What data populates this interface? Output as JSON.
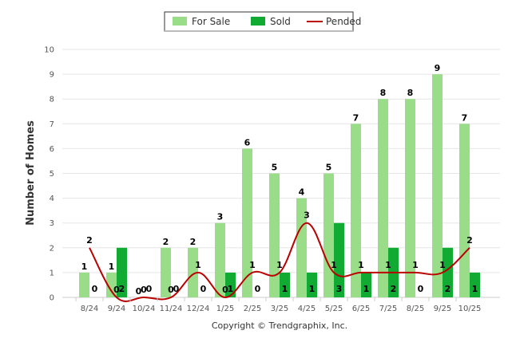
{
  "chart_data": {
    "type": "bar",
    "ylabel": "Number of Homes",
    "ylim": [
      0,
      10
    ],
    "yticks": [
      0,
      1,
      2,
      3,
      4,
      5,
      6,
      7,
      8,
      9,
      10
    ],
    "categories": [
      "8/24",
      "9/24",
      "10/24",
      "11/24",
      "12/24",
      "1/25",
      "2/25",
      "3/25",
      "4/25",
      "5/25",
      "6/25",
      "7/25",
      "8/25",
      "9/25",
      "10/25"
    ],
    "series": [
      {
        "name": "For Sale",
        "kind": "bar",
        "color": "#99dd88",
        "values": [
          1,
          1,
          0,
          2,
          2,
          3,
          6,
          5,
          4,
          5,
          7,
          8,
          8,
          9,
          7
        ]
      },
      {
        "name": "Sold",
        "kind": "bar",
        "color": "#11aa33",
        "values": [
          0,
          2,
          0,
          0,
          0,
          1,
          0,
          1,
          1,
          3,
          1,
          2,
          0,
          2,
          1
        ]
      },
      {
        "name": "Pended",
        "kind": "line",
        "color": "#bb0000",
        "values": [
          2,
          0,
          0,
          0,
          1,
          0,
          1,
          1,
          3,
          1,
          1,
          1,
          1,
          1,
          2
        ]
      }
    ],
    "legend": {
      "position": "top-center"
    }
  },
  "footer": {
    "copyright": "Copyright © Trendgraphix, Inc."
  }
}
